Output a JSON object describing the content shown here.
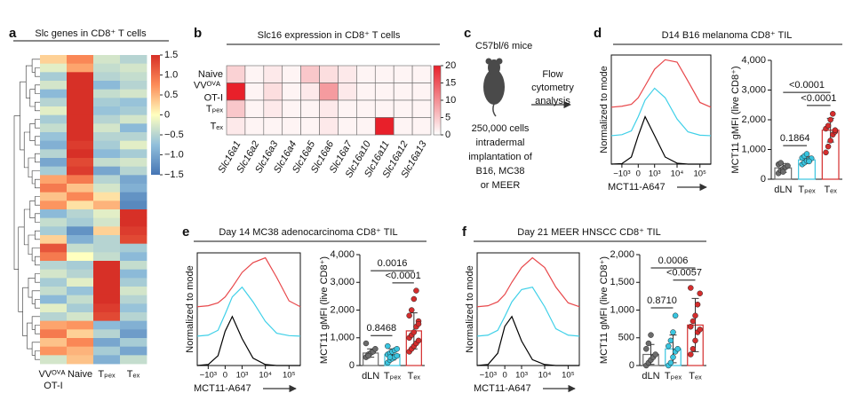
{
  "panel_labels": [
    "a",
    "b",
    "c",
    "d",
    "e",
    "f"
  ],
  "schematic": {
    "mouse": "C57bl/6 mice",
    "readout_lines": [
      "Flow",
      "cytometry",
      "analysis"
    ],
    "implant_lines": [
      "250,000 cells",
      "intradermal",
      "implantation of",
      "B16, MC38",
      "or MEER"
    ]
  },
  "chart_data": [
    {
      "type": "heatmap",
      "title": "Slc genes in CD8⁺ T cells",
      "categories": [
        "VVᴼⱽᴬ OT-I",
        "Naive",
        "Tₚₑₓ",
        "Tₑₓ"
      ],
      "values": [
        [
          0.3,
          0.8,
          -0.3,
          -0.5
        ],
        [
          -0.2,
          0.6,
          -0.4,
          -0.3
        ],
        [
          -0.6,
          1.5,
          -0.5,
          -0.4
        ],
        [
          -0.3,
          1.5,
          -0.8,
          -0.5
        ],
        [
          -0.8,
          1.5,
          -0.4,
          -0.3
        ],
        [
          -0.5,
          1.5,
          -0.6,
          -0.7
        ],
        [
          -0.2,
          1.5,
          -0.7,
          -0.6
        ],
        [
          -0.6,
          1.5,
          -0.5,
          -0.3
        ],
        [
          -0.4,
          1.5,
          -0.3,
          -0.8
        ],
        [
          -0.7,
          1.5,
          -0.5,
          -0.5
        ],
        [
          -0.9,
          1.4,
          -0.6,
          -0.2
        ],
        [
          -0.5,
          1.5,
          -0.8,
          -0.6
        ],
        [
          -1.0,
          1.3,
          -0.4,
          -0.3
        ],
        [
          -0.6,
          1.4,
          -1.0,
          -0.5
        ],
        [
          0.6,
          0.9,
          -0.5,
          -1.0
        ],
        [
          0.9,
          0.4,
          -0.3,
          -0.9
        ],
        [
          0.4,
          0.8,
          0.2,
          -1.2
        ],
        [
          0.7,
          0.2,
          0.5,
          -1.3
        ],
        [
          -0.8,
          -0.5,
          -0.2,
          1.5
        ],
        [
          -0.4,
          -0.6,
          -0.3,
          1.5
        ],
        [
          -0.6,
          -1.2,
          0.3,
          1.4
        ],
        [
          0.3,
          -0.9,
          -0.5,
          1.3
        ],
        [
          1.2,
          -0.4,
          -0.5,
          -0.6
        ],
        [
          0.9,
          0.0,
          -0.4,
          -0.8
        ],
        [
          -0.5,
          -0.6,
          1.5,
          -0.4
        ],
        [
          -0.3,
          -0.5,
          1.5,
          -0.8
        ],
        [
          -0.6,
          -0.2,
          1.5,
          -0.6
        ],
        [
          -0.4,
          -0.7,
          1.5,
          -0.3
        ],
        [
          -0.8,
          -0.4,
          1.5,
          -0.5
        ],
        [
          -0.2,
          -0.6,
          1.4,
          -0.7
        ],
        [
          -0.5,
          -0.3,
          1.3,
          -0.5
        ],
        [
          0.6,
          0.7,
          -0.8,
          -0.9
        ],
        [
          0.9,
          0.3,
          -0.5,
          -1.1
        ],
        [
          0.4,
          0.8,
          -1.0,
          -0.6
        ],
        [
          0.7,
          0.5,
          -0.6,
          -1.0
        ],
        [
          -0.3,
          0.4,
          -0.9,
          -0.4
        ]
      ],
      "colormap": [
        "#4575b4",
        "#91bfdb",
        "#ffffbf",
        "#fc8d59",
        "#d73027"
      ],
      "zlim": [
        -1.5,
        1.5
      ],
      "zticks": [
        1.5,
        {
          "value": 1,
          "label": "1.0"
        },
        0.5,
        0,
        {
          "value": -0.5,
          "label": "−0.5"
        },
        {
          "value": -1,
          "label": "−1.0"
        },
        {
          "value": -1.5,
          "label": "−1.5"
        }
      ]
    },
    {
      "type": "heatmap",
      "title": "Slc16 expression in CD8⁺ T cells",
      "categories": [
        "Slc16a1",
        "Slc16a2",
        "Slc16a3",
        "Slc16a4",
        "Slc16a5",
        "Slc16a6",
        "Slc16a7",
        "Slc16a10",
        "Slc16a11",
        "Slc16a12",
        "Slc16a13"
      ],
      "row_labels": [
        "Naive",
        "VVᴼⱽᴬ OT-I",
        "Tₚₑₓ",
        "Tₑₓ"
      ],
      "values": [
        [
          4,
          1,
          2,
          1,
          5,
          3,
          2,
          1,
          1,
          1,
          1
        ],
        [
          20,
          1,
          3,
          1,
          2,
          9,
          2,
          1,
          1,
          1,
          1
        ],
        [
          5,
          1,
          2,
          1,
          1,
          2,
          1,
          1,
          1,
          1,
          1
        ],
        [
          2,
          1,
          1,
          1,
          1,
          2,
          1,
          1,
          20,
          1,
          1
        ]
      ],
      "colormap": [
        "#ffffff",
        "#e8202a"
      ],
      "zlim": [
        0,
        20
      ],
      "zticks": [
        20,
        15,
        10,
        5,
        0
      ]
    },
    {
      "type": "histogram",
      "title": "D14 B16 melanoma CD8⁺ TIL",
      "xlabel": "MCT11-A647",
      "ylabel": "Normalized to mode",
      "xscale": "biexponential",
      "x": [
        -3000,
        -1000,
        -300,
        0,
        300,
        1000,
        3000,
        10000,
        30000,
        100000,
        300000
      ],
      "offset": 60,
      "series": [
        {
          "color": "#000000",
          "values": [
            0,
            1,
            15,
            60,
            100,
            60,
            15,
            2,
            0,
            0,
            0
          ]
        },
        {
          "color": "#3fd0e8",
          "values": [
            0,
            2,
            10,
            40,
            75,
            100,
            80,
            35,
            8,
            1,
            0
          ]
        },
        {
          "color": "#e8474a",
          "values": [
            0,
            2,
            6,
            20,
            45,
            80,
            100,
            95,
            55,
            10,
            0
          ]
        }
      ],
      "xlim": [
        -3000,
        300000
      ],
      "ylim": [
        0,
        230
      ],
      "xticks": [
        {
          "value": -1000,
          "label": "−10³"
        },
        0,
        {
          "value": 1000,
          "label": "10³"
        },
        {
          "value": 10000,
          "label": "10⁴"
        },
        {
          "value": 100000,
          "label": "10⁵"
        }
      ]
    },
    {
      "type": "bar",
      "ylabel": "MCT11 gMFI (live CD8⁺)",
      "categories": [
        "dLN",
        "Tₚₑₓ",
        "Tₑₓ"
      ],
      "colors": [
        "#6b6b6b",
        "#39c5e0",
        "#d42d2d"
      ],
      "values": [
        380,
        650,
        1650
      ],
      "errors": [
        150,
        120,
        400
      ],
      "points": [
        [
          200,
          300,
          350,
          400,
          450,
          500,
          550,
          250
        ],
        [
          500,
          560,
          620,
          650,
          700,
          720,
          780,
          850,
          600
        ],
        [
          900,
          1100,
          1300,
          1500,
          1600,
          1700,
          1800,
          2000,
          2200,
          1650
        ]
      ],
      "comparisons": [
        {
          "pair": [
            "dLN",
            "Tₚₑₓ"
          ],
          "label": "0.1864"
        },
        {
          "pair": [
            "Tₚₑₓ",
            "Tₑₓ"
          ],
          "label": "<0.0001"
        },
        {
          "pair": [
            "dLN",
            "Tₑₓ"
          ],
          "label": "<0.0001"
        }
      ],
      "ylim": [
        0,
        4000
      ],
      "yticks": [
        0,
        {
          "value": 1000,
          "label": "1,000"
        },
        {
          "value": 2000,
          "label": "2,000"
        },
        {
          "value": 3000,
          "label": "3,000"
        },
        {
          "value": 4000,
          "label": "4,000"
        }
      ]
    },
    {
      "type": "histogram",
      "title": "Day 14 MC38 adenocarcinoma CD8⁺ TIL",
      "xlabel": "MCT11-A647",
      "ylabel": "Normalized to mode",
      "xscale": "biexponential",
      "x": [
        -3000,
        -1000,
        -300,
        0,
        300,
        1000,
        3000,
        10000,
        30000,
        100000,
        300000
      ],
      "offset": 60,
      "series": [
        {
          "color": "#000000",
          "values": [
            0,
            2,
            20,
            70,
            100,
            55,
            15,
            2,
            0,
            0,
            0
          ]
        },
        {
          "color": "#3fd0e8",
          "values": [
            0,
            2,
            12,
            45,
            80,
            100,
            70,
            30,
            6,
            1,
            0
          ]
        },
        {
          "color": "#e8474a",
          "values": [
            0,
            2,
            8,
            20,
            40,
            70,
            90,
            100,
            60,
            12,
            0
          ]
        }
      ],
      "xlim": [
        -3000,
        300000
      ],
      "ylim": [
        0,
        230
      ],
      "xticks": [
        {
          "value": -1000,
          "label": "−10³"
        },
        0,
        {
          "value": 1000,
          "label": "10³"
        },
        {
          "value": 10000,
          "label": "10⁴"
        },
        {
          "value": 100000,
          "label": "10⁵"
        }
      ]
    },
    {
      "type": "bar",
      "ylabel": "MCT11 gMFI (live CD8⁺)",
      "categories": [
        "dLN",
        "Tₚₑₓ",
        "Tₑₓ"
      ],
      "colors": [
        "#6b6b6b",
        "#39c5e0",
        "#d42d2d"
      ],
      "values": [
        450,
        400,
        1250
      ],
      "errors": [
        150,
        200,
        650
      ],
      "points": [
        [
          300,
          400,
          450,
          500,
          600,
          800,
          350
        ],
        [
          100,
          200,
          250,
          300,
          350,
          400,
          450,
          500,
          550,
          600,
          700,
          300
        ],
        [
          500,
          600,
          700,
          800,
          900,
          1000,
          1100,
          1200,
          1400,
          1600,
          1800,
          2000,
          2400,
          2700,
          1500
        ]
      ],
      "comparisons": [
        {
          "pair": [
            "dLN",
            "Tₚₑₓ"
          ],
          "label": "0.8468"
        },
        {
          "pair": [
            "Tₚₑₓ",
            "Tₑₓ"
          ],
          "label": "<0.0001"
        },
        {
          "pair": [
            "dLN",
            "Tₑₓ"
          ],
          "label": "0.0016"
        }
      ],
      "ylim": [
        0,
        4000
      ],
      "yticks": [
        0,
        {
          "value": 1000,
          "label": "1,000"
        },
        {
          "value": 2000,
          "label": "2,000"
        },
        {
          "value": 3000,
          "label": "3,000"
        },
        {
          "value": 4000,
          "label": "4,000"
        }
      ]
    },
    {
      "type": "histogram",
      "title": "Day 21 MEER HNSCC CD8⁺ TIL",
      "xlabel": "MCT11-A647",
      "ylabel": "Normalized to mode",
      "xscale": "biexponential",
      "x": [
        -3000,
        -1000,
        -300,
        0,
        300,
        1000,
        3000,
        10000,
        30000,
        100000,
        300000
      ],
      "offset": 60,
      "series": [
        {
          "color": "#000000",
          "values": [
            0,
            2,
            25,
            80,
            100,
            50,
            12,
            2,
            0,
            0,
            0
          ]
        },
        {
          "color": "#3fd0e8",
          "values": [
            0,
            2,
            12,
            40,
            70,
            95,
            100,
            60,
            15,
            2,
            0
          ]
        },
        {
          "color": "#e8474a",
          "values": [
            0,
            2,
            10,
            25,
            50,
            80,
            100,
            80,
            40,
            8,
            0
          ]
        }
      ],
      "xlim": [
        -3000,
        300000
      ],
      "ylim": [
        0,
        230
      ],
      "xticks": [
        {
          "value": -1000,
          "label": "−10³"
        },
        0,
        {
          "value": 1000,
          "label": "10³"
        },
        {
          "value": 10000,
          "label": "10⁴"
        },
        {
          "value": 100000,
          "label": "10⁵"
        }
      ]
    },
    {
      "type": "bar",
      "ylabel": "MCT11 gMFI (live CD8⁺)",
      "categories": [
        "dLN",
        "Tₚₑₓ",
        "Tₑₓ"
      ],
      "colors": [
        "#6b6b6b",
        "#39c5e0",
        "#d42d2d"
      ],
      "values": [
        200,
        300,
        730
      ],
      "errors": [
        180,
        250,
        480
      ],
      "points": [
        [
          0,
          50,
          100,
          150,
          200,
          300,
          400,
          550
        ],
        [
          0,
          50,
          150,
          250,
          300,
          350,
          450,
          600,
          900
        ],
        [
          200,
          300,
          450,
          600,
          650,
          700,
          800,
          900,
          1100,
          1300,
          1400
        ]
      ],
      "comparisons": [
        {
          "pair": [
            "dLN",
            "Tₚₑₓ"
          ],
          "label": "0.8710"
        },
        {
          "pair": [
            "Tₚₑₓ",
            "Tₑₓ"
          ],
          "label": "<0.0057"
        },
        {
          "pair": [
            "dLN",
            "Tₑₓ"
          ],
          "label": "0.0006"
        }
      ],
      "ylim": [
        0,
        2000
      ],
      "yticks": [
        0,
        {
          "value": 500,
          "label": "500"
        },
        {
          "value": 1000,
          "label": "1,000"
        },
        {
          "value": 1500,
          "label": "1,500"
        },
        {
          "value": 2000,
          "label": "2,000"
        }
      ]
    }
  ]
}
